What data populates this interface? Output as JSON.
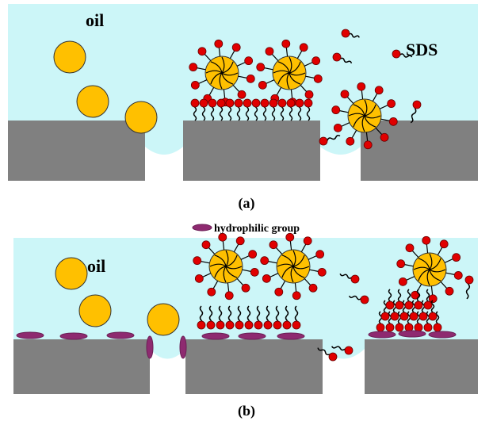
{
  "panel_a": {
    "oil_label": "oil",
    "surfactant_label": "SDS",
    "caption": "(a)"
  },
  "legend": {
    "label": "hydrophilic group"
  },
  "panel_b": {
    "oil_label": "oil",
    "caption": "(b)"
  }
}
